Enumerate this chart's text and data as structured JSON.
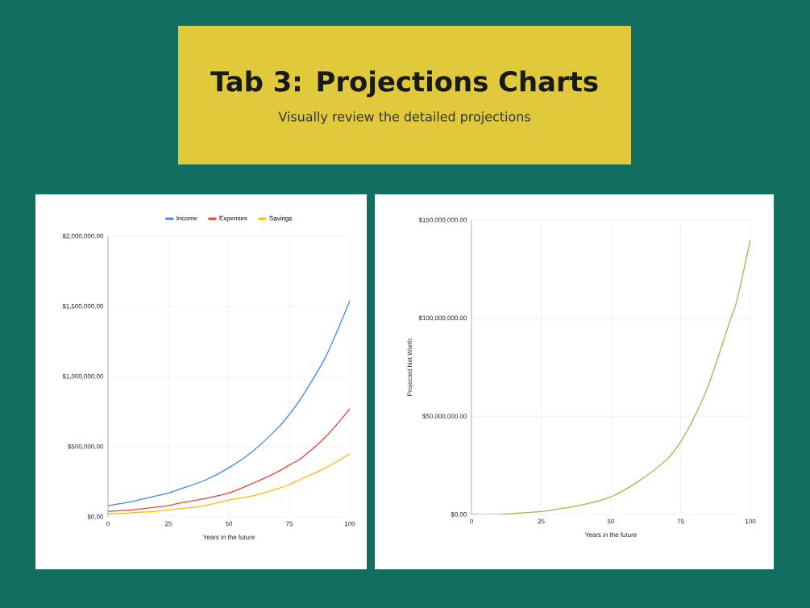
{
  "chart_data": [
    {
      "type": "line",
      "title": "Tab 3: Projections Charts",
      "subtitle": "Visually review the detailed projections",
      "xlabel": "Years in the future",
      "x": [
        0,
        10,
        20,
        25,
        30,
        40,
        50,
        60,
        70,
        75,
        80,
        90,
        100
      ],
      "series": [
        {
          "name": "Income",
          "color": "#4285f4",
          "values": [
            80000,
            110000,
            150000,
            170000,
            200000,
            260000,
            350000,
            470000,
            630000,
            730000,
            850000,
            1140000,
            1540000
          ]
        },
        {
          "name": "Expenses",
          "color": "#ea4335",
          "values": [
            40000,
            50000,
            70000,
            80000,
            100000,
            130000,
            170000,
            240000,
            320000,
            370000,
            420000,
            570000,
            770000
          ]
        },
        {
          "name": "Savings",
          "color": "#fbbc04",
          "values": [
            20000,
            30000,
            40000,
            50000,
            60000,
            80000,
            120000,
            150000,
            200000,
            230000,
            270000,
            350000,
            450000
          ]
        }
      ],
      "xlim": [
        0,
        100
      ],
      "xticks": [
        0,
        25,
        50,
        75,
        100
      ],
      "ylim": [
        0,
        2000000
      ],
      "yticks": [
        {
          "value": 0,
          "label": "$0.00"
        },
        {
          "value": 500000,
          "label": "$500,000.00"
        },
        {
          "value": 1000000,
          "label": "$1,000,000.00"
        },
        {
          "value": 1500000,
          "label": "$1,500,000.00"
        },
        {
          "value": 2000000,
          "label": "$2,000,000.00"
        }
      ],
      "grid": true,
      "legend": "top"
    },
    {
      "type": "line",
      "xlabel": "Years in the future",
      "ylabel": "Projected Net Worth",
      "x": [
        0,
        10,
        20,
        25,
        30,
        40,
        50,
        60,
        70,
        75,
        80,
        85,
        90,
        93,
        95,
        100
      ],
      "series": [
        {
          "color": "#8bc34a",
          "values": [
            0,
            0,
            1000000,
            1500000,
            2500000,
            5000000,
            9000000,
            17000000,
            28000000,
            37000000,
            50000000,
            66000000,
            87000000,
            100000000,
            108000000,
            140000000
          ]
        }
      ],
      "xlim": [
        0,
        100
      ],
      "xticks": [
        0,
        25,
        50,
        75,
        100
      ],
      "ylim": [
        0,
        150000000
      ],
      "yticks": [
        {
          "value": 0,
          "label": "$0.00"
        },
        {
          "value": 50000000,
          "label": "$50,000,000.00"
        },
        {
          "value": 100000000,
          "label": "$100,000,000.00"
        },
        {
          "value": 150000000,
          "label": "$150,000,000.00"
        }
      ],
      "grid": true
    }
  ]
}
